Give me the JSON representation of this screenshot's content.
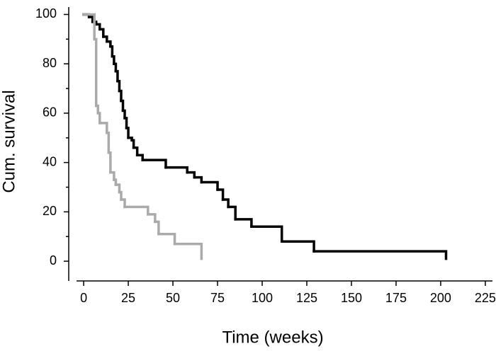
{
  "chart_data": {
    "type": "step",
    "xlabel": "Time (weeks)",
    "ylabel": "Cum. survival",
    "xlim": [
      -4,
      229
    ],
    "ylim": [
      -8,
      103
    ],
    "xticks": [
      0,
      25,
      50,
      75,
      100,
      125,
      150,
      175,
      200,
      225
    ],
    "yticks": [
      0,
      20,
      40,
      60,
      80,
      100
    ],
    "yminor_ticks": [
      10,
      30,
      50,
      70,
      90
    ],
    "series": [
      {
        "color": "#000000",
        "x": [
          0,
          3,
          5,
          7,
          9,
          11,
          13,
          15,
          16,
          17,
          18,
          19,
          20,
          21,
          22,
          23,
          24,
          25,
          27,
          28,
          30,
          33,
          46,
          58,
          62,
          66,
          75,
          78,
          81,
          85,
          94,
          111,
          129,
          203
        ],
        "values": [
          100,
          99,
          97,
          96,
          94,
          91,
          89,
          87,
          83,
          80,
          77,
          73,
          69,
          65,
          61,
          58,
          54,
          50,
          49,
          46,
          43,
          41,
          38,
          36,
          34,
          32,
          29,
          25,
          22,
          17,
          14,
          8,
          4,
          1
        ]
      },
      {
        "color": "#aaaaaa",
        "x": [
          0,
          6,
          7,
          8,
          9,
          13,
          14,
          15,
          17,
          18,
          20,
          21,
          23,
          36,
          40,
          42,
          51,
          66
        ],
        "values": [
          100,
          90,
          63,
          60,
          56,
          52,
          44,
          36,
          33,
          31,
          28,
          25,
          22,
          19,
          16,
          11,
          7,
          1
        ]
      }
    ]
  }
}
